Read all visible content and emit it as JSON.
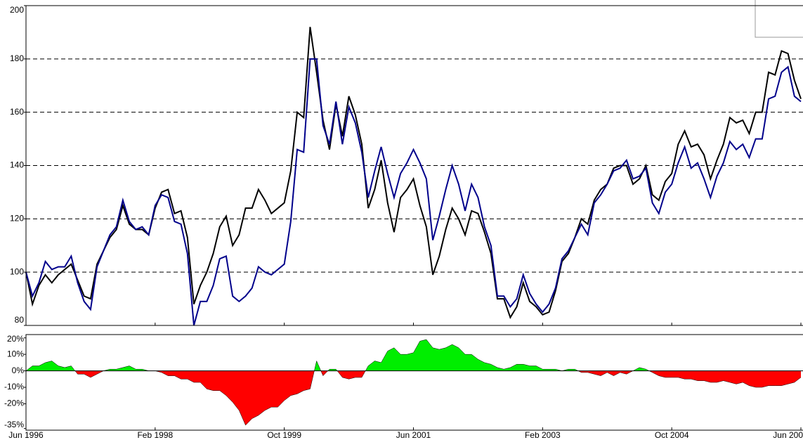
{
  "chart_data": [
    {
      "type": "line",
      "categories": [
        "Jun 1996",
        null,
        null,
        null,
        null,
        null,
        null,
        null,
        null,
        null,
        null,
        null,
        null,
        null,
        null,
        null,
        null,
        null,
        null,
        null,
        "Feb 1998",
        null,
        null,
        null,
        null,
        null,
        null,
        null,
        null,
        null,
        null,
        null,
        null,
        null,
        null,
        null,
        null,
        null,
        null,
        null,
        "Oct 1999",
        null,
        null,
        null,
        null,
        null,
        null,
        null,
        null,
        null,
        null,
        null,
        null,
        null,
        null,
        null,
        null,
        null,
        null,
        null,
        "Jun 2001",
        null,
        null,
        null,
        null,
        null,
        null,
        null,
        null,
        null,
        null,
        null,
        null,
        null,
        null,
        null,
        null,
        null,
        null,
        null,
        "Feb 2003",
        null,
        null,
        null,
        null,
        null,
        null,
        null,
        null,
        null,
        null,
        null,
        null,
        null,
        null,
        null,
        null,
        null,
        null,
        null,
        "Oct 2004",
        null,
        null,
        null,
        null,
        null,
        null,
        null,
        null,
        null,
        null,
        null,
        null,
        null,
        null,
        null,
        null,
        null,
        null,
        null,
        "Jun 200"
      ],
      "series": [
        {
          "color": "#000000",
          "values": [
            100,
            88,
            95,
            99,
            96,
            99,
            101,
            103,
            97,
            91,
            90,
            103,
            108,
            113,
            116,
            125,
            118,
            116,
            116,
            114,
            124,
            130,
            131,
            122,
            123,
            113,
            88,
            95,
            100,
            107,
            117,
            121,
            110,
            114,
            124,
            124,
            131,
            127,
            122,
            124,
            126,
            138,
            160,
            158,
            192,
            175,
            157,
            146,
            163,
            151,
            166,
            159,
            148,
            124,
            131,
            142,
            126,
            115,
            128,
            131,
            135,
            125,
            117,
            99,
            106,
            116,
            124,
            120,
            114,
            123,
            122,
            115,
            107,
            90,
            90,
            83,
            87,
            96,
            89,
            87,
            84,
            85,
            93,
            104,
            107,
            113,
            120,
            118,
            127,
            131,
            133,
            139,
            140,
            140,
            133,
            135,
            140,
            129,
            127,
            134,
            137,
            148,
            153,
            147,
            148,
            144,
            135,
            142,
            148,
            158,
            156,
            157,
            152,
            160,
            160,
            175,
            174,
            183,
            182,
            172,
            165
          ]
        },
        {
          "color": "#00008b",
          "values": [
            100,
            91,
            96,
            104,
            101,
            102,
            102,
            106,
            96,
            89,
            86,
            102,
            108,
            114,
            117,
            127,
            119,
            116,
            117,
            114,
            125,
            129,
            128,
            119,
            118,
            107,
            80,
            89,
            89,
            95,
            105,
            106,
            91,
            89,
            91,
            94,
            102,
            100,
            99,
            101,
            103,
            119,
            146,
            145,
            180,
            180,
            155,
            148,
            164,
            148,
            162,
            156,
            145,
            128,
            138,
            147,
            137,
            128,
            137,
            141,
            146,
            141,
            135,
            112,
            121,
            131,
            140,
            133,
            123,
            133,
            128,
            117,
            110,
            91,
            91,
            87,
            90,
            99,
            92,
            88,
            85,
            88,
            94,
            105,
            108,
            113,
            118,
            114,
            126,
            129,
            133,
            138,
            139,
            142,
            135,
            136,
            139,
            126,
            122,
            130,
            133,
            141,
            147,
            139,
            141,
            135,
            128,
            136,
            141,
            149,
            146,
            148,
            143,
            150,
            150,
            165,
            166,
            175,
            177,
            166,
            164
          ]
        }
      ],
      "ylim": [
        80,
        200
      ],
      "yticks": [
        80,
        100,
        120,
        140,
        160,
        180,
        200
      ],
      "grid": true
    },
    {
      "type": "area",
      "values": [
        0,
        3,
        3,
        5,
        6,
        3,
        2,
        3,
        -2,
        -2,
        -4,
        -2,
        0,
        1,
        1,
        2,
        3,
        1,
        1,
        0,
        0,
        -1,
        -3,
        -3,
        -5,
        -5,
        -7,
        -7,
        -11,
        -12,
        -12,
        -15,
        -19,
        -24,
        -33,
        -29,
        -27,
        -24,
        -22,
        -22,
        -18,
        -15,
        -14,
        -12,
        -11,
        6,
        -3,
        1,
        1,
        -4,
        -5,
        -4,
        -4,
        3,
        6,
        5,
        12,
        14,
        10,
        10,
        11,
        18,
        19,
        14,
        13,
        14,
        16,
        14,
        10,
        10,
        7,
        5,
        4,
        2,
        1,
        2,
        4,
        4,
        3,
        3,
        1,
        1,
        1,
        0,
        1,
        1,
        -1,
        -1,
        -2,
        -3,
        -1,
        -3,
        -1,
        -2,
        0,
        2,
        1,
        -1,
        -3,
        -4,
        -4,
        -4,
        -5,
        -5,
        -6,
        -6,
        -7,
        -7,
        -6,
        -7,
        -8,
        -7,
        -9,
        -10,
        -10,
        -9,
        -9,
        -9,
        -8,
        -7,
        -4
      ],
      "positive_color": "#00ee00",
      "negative_color": "#ff0000",
      "ylim": [
        -36,
        22
      ],
      "yticks": [
        {
          "value": -35,
          "label": "-35%"
        },
        {
          "value": -20,
          "label": "-20%"
        },
        {
          "value": -10,
          "label": "-10%"
        },
        {
          "value": 0,
          "label": "0%"
        },
        {
          "value": 10,
          "label": "10%"
        },
        {
          "value": 20,
          "label": "20%"
        }
      ]
    }
  ]
}
